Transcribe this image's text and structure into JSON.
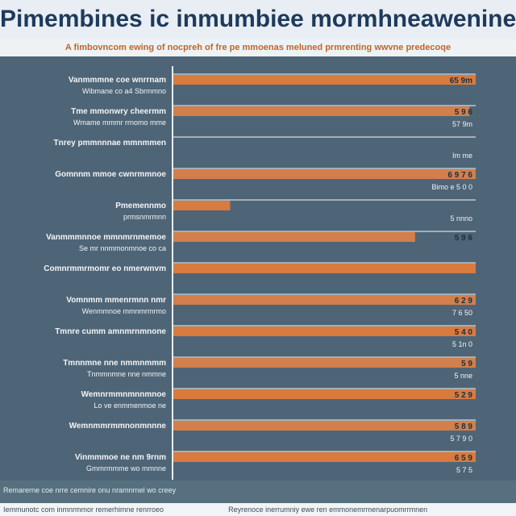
{
  "title": "Pimembines ic inmumbiee mormhneawenine",
  "subtitle": "A fimbovncom ewing of nocpreh of fre pe mmoenas meluned prmrenting wwvne predecoqe",
  "footer": {
    "line1": "Remarerne coe nrre cemnire onu nramnrnel wo creey",
    "line2": "Iemmunotc com inmnrmmor remerhimne renrroeo",
    "line3": "Reyrenoce inerrumniy ewe ren emmonemrmenarpuomrrmnen"
  },
  "chart_data": {
    "type": "bar",
    "orientation": "horizontal",
    "colors": {
      "bar": "#d27f4c",
      "bar_alt": "#d97a3e",
      "highlight_label": "#e6c15a",
      "axis": "#e8eef3",
      "row_line": "#eef2f5",
      "label_text": "#f2f4f6",
      "label_dark": "#1f2f3f",
      "label_red": "#b5472a",
      "label_blue": "#1d4f9a"
    },
    "xlim": [
      0,
      100
    ],
    "rows": [
      {
        "label": "Vanmmmne coe wnrrnam",
        "sublabel": "Wibmane co a4 Sbrmmno",
        "value": 100,
        "value_label": "65 9m",
        "value_sublabel": ""
      },
      {
        "label": "Tme mmonwry cheermm",
        "sublabel": "Wmame mmmr rrnomo mme",
        "value": 98,
        "value_label": "5 9 6",
        "value_sublabel": "57 9m"
      },
      {
        "label": "Tnrey pmmnnnae mmnmmen",
        "sublabel": "",
        "value": 0,
        "value_label": "",
        "value_sublabel": "Im me"
      },
      {
        "label": "Gomnnm mmoe cwnrmmnoe",
        "sublabel": "",
        "value": 100,
        "value_label": "6 9 7 6",
        "value_sublabel": "Bimo e 5 0 0"
      },
      {
        "label": "Pmemennmo",
        "sublabel": "prmsnmrmnn",
        "value": 19,
        "value_label": "",
        "value_sublabel": "5 nnno"
      },
      {
        "label": "Vanmmmnnoe mmnmrnmemoe",
        "sublabel": "Se mr nnmmonmnoe co ca",
        "value": 80,
        "value_label": "5 9 6",
        "value_sublabel": ""
      },
      {
        "label": "Comnrmmrmomr eo nmerwnvm",
        "sublabel": "",
        "value": 100,
        "value_label": "",
        "value_sublabel": ""
      },
      {
        "label": "Vomnmm mmenrmnn nmr",
        "sublabel": "Wenmmnoe mmnmrmrmo",
        "value": 100,
        "value_label": "6 2 9",
        "value_sublabel": "7 6 50"
      },
      {
        "label": "Tmnre cumm amnmrnmnone",
        "sublabel": "",
        "value": 100,
        "value_label": "5 4 0",
        "value_sublabel": "5 1n 0"
      },
      {
        "label": "Tmnnmne nne nmmnmmm",
        "sublabel": "Tnmmnmne nne nmmne",
        "value": 100,
        "value_label": "5 9",
        "value_sublabel": "5 nne"
      },
      {
        "label": "Wemnrmmnmnnmnoe",
        "sublabel": "Lo ve enmmenmoe ne",
        "value": 100,
        "value_label": "5 2 9",
        "value_sublabel": ""
      },
      {
        "label": "Wemnmmrmmnonmnnne",
        "sublabel": "",
        "value": 100,
        "value_label": "5 8 9",
        "value_sublabel": "5 7 9 0"
      },
      {
        "label": "Vinmmmoe ne nm 9rnm",
        "sublabel": "Gmmrmmme wo mmnne",
        "value": 100,
        "value_label": "6 5 9",
        "value_sublabel": "5 7 5"
      }
    ]
  }
}
